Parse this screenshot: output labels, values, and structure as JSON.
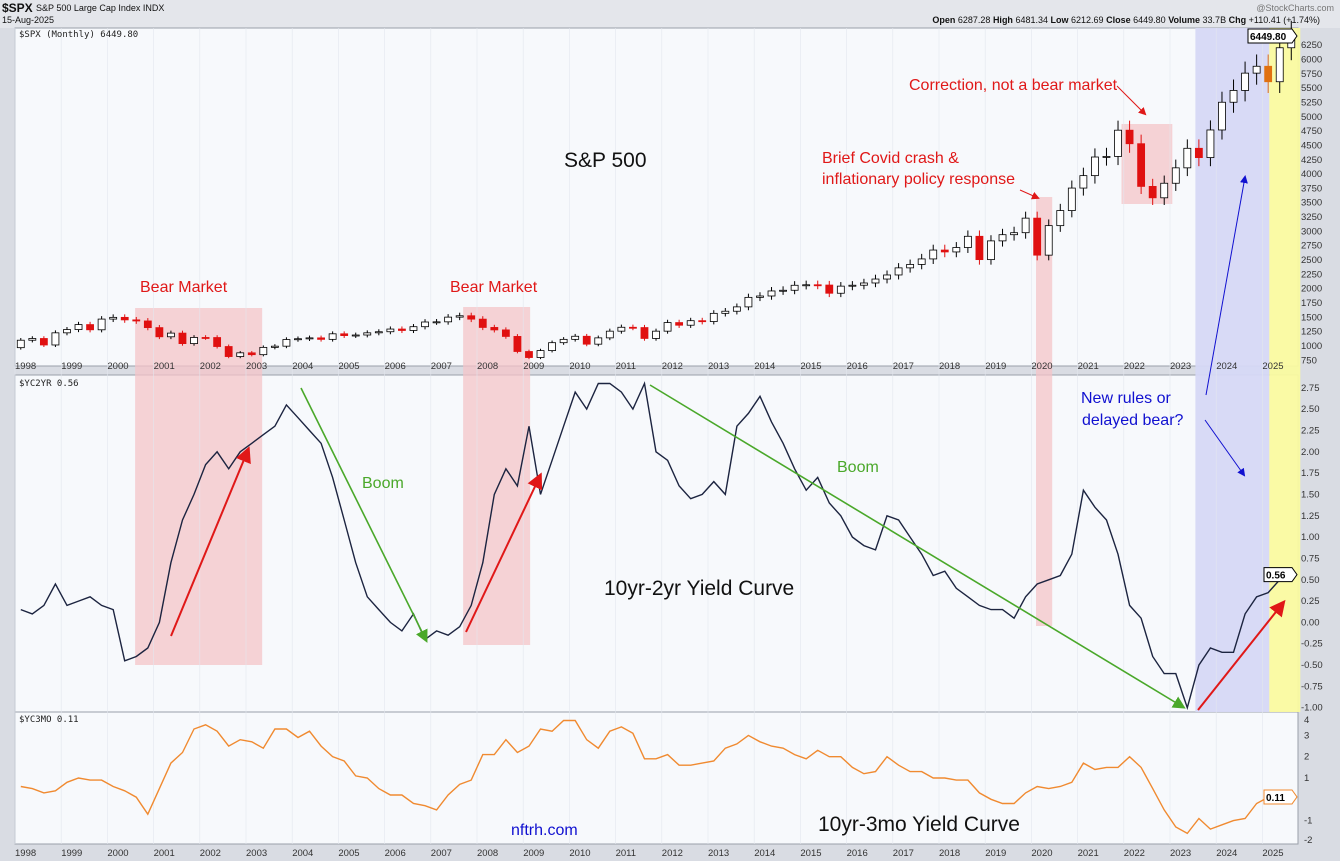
{
  "header": {
    "symbol": "$SPX",
    "description": "S&P 500 Large Cap Index  INDX",
    "date": "15-Aug-2025",
    "brand": "@StockCharts.com",
    "open_label": "Open",
    "open": "6287.28",
    "high_label": "High",
    "high": "6481.34",
    "low_label": "Low",
    "low": "6212.69",
    "close_label": "Close",
    "close": "6449.80",
    "volume_label": "Volume",
    "volume": "33.7B",
    "chg_label": "Chg",
    "chg": "+110.41 (+1.74%)"
  },
  "chart_data": [
    {
      "type": "candlestick",
      "panel_label": "$SPX (Monthly) 6449.80",
      "last_value": "6449.80",
      "x_ticks": [
        "1998",
        "1999",
        "2000",
        "2001",
        "2002",
        "2003",
        "2004",
        "2005",
        "2006",
        "2007",
        "2008",
        "2009",
        "2010",
        "2011",
        "2012",
        "2013",
        "2014",
        "2015",
        "2016",
        "2017",
        "2018",
        "2019",
        "2020",
        "2021",
        "2022",
        "2023",
        "2024",
        "2025"
      ],
      "y_ticks": [
        750,
        1000,
        1250,
        1500,
        1750,
        2000,
        2250,
        2500,
        2750,
        3000,
        3250,
        3500,
        3750,
        4000,
        4250,
        4500,
        4750,
        5000,
        5250,
        5500,
        5750,
        6000,
        6250
      ],
      "ylim": [
        650,
        6550
      ],
      "start_year": 1998,
      "quarterly_close": [
        1100,
        1130,
        1017,
        1229,
        1286,
        1373,
        1282,
        1469,
        1499,
        1455,
        1436,
        1320,
        1160,
        1224,
        1041,
        1148,
        1147,
        990,
        815,
        880,
        848,
        975,
        996,
        1112,
        1126,
        1141,
        1115,
        1212,
        1181,
        1191,
        1229,
        1248,
        1295,
        1270,
        1336,
        1418,
        1421,
        1503,
        1527,
        1468,
        1323,
        1280,
        1166,
        903,
        798,
        919,
        1057,
        1115,
        1169,
        1031,
        1141,
        1258,
        1326,
        1321,
        1131,
        1258,
        1408,
        1362,
        1441,
        1426,
        1569,
        1606,
        1682,
        1848,
        1872,
        1960,
        1972,
        2059,
        2068,
        2063,
        1920,
        2044,
        2060,
        2099,
        2168,
        2239,
        2363,
        2423,
        2519,
        2674,
        2641,
        2718,
        2914,
        2507,
        2834,
        2942,
        2977,
        3231,
        2585,
        3100,
        3363,
        3756,
        3973,
        4298,
        4308,
        4766,
        4530,
        3785,
        3586,
        3840,
        4109,
        4450,
        4288,
        4770,
        5254,
        5460,
        5762,
        5882,
        5612,
        6205,
        6449.8
      ],
      "first_open": 970,
      "up_color": "#000000",
      "down_color": "#e01010",
      "highlight_color": "#e07010"
    },
    {
      "type": "line",
      "panel_label": "$YC2YR 0.56",
      "last_value": "0.56",
      "y_ticks": [
        "2.75",
        "2.50",
        "2.25",
        "2.00",
        "1.75",
        "1.50",
        "1.25",
        "1.00",
        "0.75",
        "0.50",
        "0.25",
        "0.00",
        "-0.25",
        "-0.50",
        "-0.75",
        "-1.00"
      ],
      "ylim": [
        -1.05,
        2.9
      ],
      "start_year": 1998,
      "quarterly": [
        0.15,
        0.1,
        0.2,
        0.45,
        0.2,
        0.25,
        0.3,
        0.2,
        0.15,
        -0.45,
        -0.4,
        -0.3,
        0.0,
        0.7,
        1.2,
        1.5,
        1.85,
        2.0,
        1.8,
        2.0,
        2.1,
        2.2,
        2.3,
        2.55,
        2.4,
        2.25,
        2.1,
        1.7,
        1.2,
        0.7,
        0.3,
        0.15,
        0.0,
        -0.1,
        0.1,
        -0.2,
        -0.1,
        -0.15,
        -0.05,
        0.2,
        0.7,
        1.5,
        1.8,
        1.6,
        2.3,
        1.5,
        1.9,
        2.3,
        2.7,
        2.5,
        2.8,
        2.8,
        2.7,
        2.5,
        2.8,
        2.0,
        1.9,
        1.6,
        1.45,
        1.5,
        1.65,
        1.5,
        2.3,
        2.45,
        2.65,
        2.35,
        2.1,
        1.8,
        1.55,
        1.7,
        1.4,
        1.25,
        1.0,
        0.9,
        0.85,
        1.25,
        1.2,
        1.0,
        0.8,
        0.55,
        0.6,
        0.4,
        0.3,
        0.2,
        0.15,
        0.15,
        0.05,
        0.3,
        0.45,
        0.5,
        0.55,
        0.8,
        1.55,
        1.35,
        1.2,
        0.8,
        0.2,
        0.05,
        -0.4,
        -0.6,
        -0.6,
        -1.0,
        -0.5,
        -0.3,
        -0.35,
        -0.35,
        0.1,
        0.3,
        0.35,
        0.5,
        0.56
      ],
      "color": "#1c2440"
    },
    {
      "type": "line",
      "panel_label": "$YC3MO 0.11",
      "last_value": "0.11",
      "y_ticks": [
        "4",
        "3",
        "2",
        "1",
        "-1",
        "-2"
      ],
      "ylim": [
        -2.1,
        4.1
      ],
      "start_year": 1998,
      "quarterly": [
        0.6,
        0.5,
        0.3,
        0.4,
        0.8,
        1.0,
        0.9,
        0.9,
        0.6,
        0.4,
        0.1,
        -0.7,
        0.5,
        1.7,
        2.2,
        3.3,
        3.5,
        3.2,
        2.5,
        2.8,
        2.7,
        2.4,
        3.3,
        3.3,
        2.9,
        3.2,
        2.5,
        2.0,
        1.8,
        1.1,
        1.0,
        0.5,
        0.2,
        0.2,
        -0.2,
        -0.3,
        -0.5,
        0.2,
        0.7,
        0.9,
        2.1,
        2.1,
        2.8,
        2.2,
        2.5,
        3.3,
        3.2,
        3.7,
        3.7,
        2.8,
        2.4,
        3.2,
        3.4,
        3.1,
        1.9,
        1.9,
        2.1,
        1.6,
        1.6,
        1.7,
        1.8,
        2.4,
        2.6,
        3.0,
        2.7,
        2.5,
        2.4,
        2.1,
        1.9,
        2.3,
        2.0,
        2.0,
        1.5,
        1.2,
        1.3,
        2.0,
        1.6,
        1.3,
        1.3,
        1.0,
        1.0,
        0.9,
        0.9,
        0.3,
        0.0,
        -0.2,
        -0.2,
        0.3,
        0.6,
        0.5,
        0.6,
        0.8,
        1.7,
        1.4,
        1.5,
        1.5,
        2.0,
        1.5,
        0.5,
        -0.5,
        -1.3,
        -1.6,
        -0.9,
        -1.4,
        -1.2,
        -1.0,
        -0.9,
        -0.2,
        0.1,
        0.0,
        0.11
      ],
      "color": "#f08a30"
    }
  ],
  "shaded_periods": [
    {
      "kind": "bear",
      "from": 2000.6,
      "to": 2003.35,
      "color": "#f4c4c8"
    },
    {
      "kind": "bear",
      "from": 2007.7,
      "to": 2009.15,
      "color": "#f4c4c8"
    },
    {
      "kind": "covid",
      "from": 2020.1,
      "to": 2020.45,
      "color": "#f4c4c8"
    },
    {
      "kind": "correction",
      "from": 2021.95,
      "to": 2023.05,
      "color": "#f4c4c8"
    },
    {
      "kind": "new-rules",
      "from": 2023.55,
      "to": 2025.15,
      "color": "#d6d8f6"
    },
    {
      "kind": "current",
      "from": 2025.15,
      "to": 2025.82,
      "color": "#fafaa0"
    }
  ],
  "annotations": {
    "spx_title": "S&P 500",
    "bear1": "Bear Market",
    "bear2": "Bear Market",
    "covid_line1": "Brief Covid crash &",
    "covid_line2": "inflationary policy response",
    "correction": "Correction, not a bear market",
    "new_rules_line1": "New rules or",
    "new_rules_line2": "delayed bear?",
    "boom1": "Boom",
    "boom2": "Boom",
    "yc2_title": "10yr-2yr Yield Curve",
    "yc3_title": "10yr-3mo Yield Curve",
    "site": "nftrh.com",
    "colors": {
      "red": "#e01818",
      "green": "#4aa82a",
      "blue": "#1010d0"
    }
  }
}
